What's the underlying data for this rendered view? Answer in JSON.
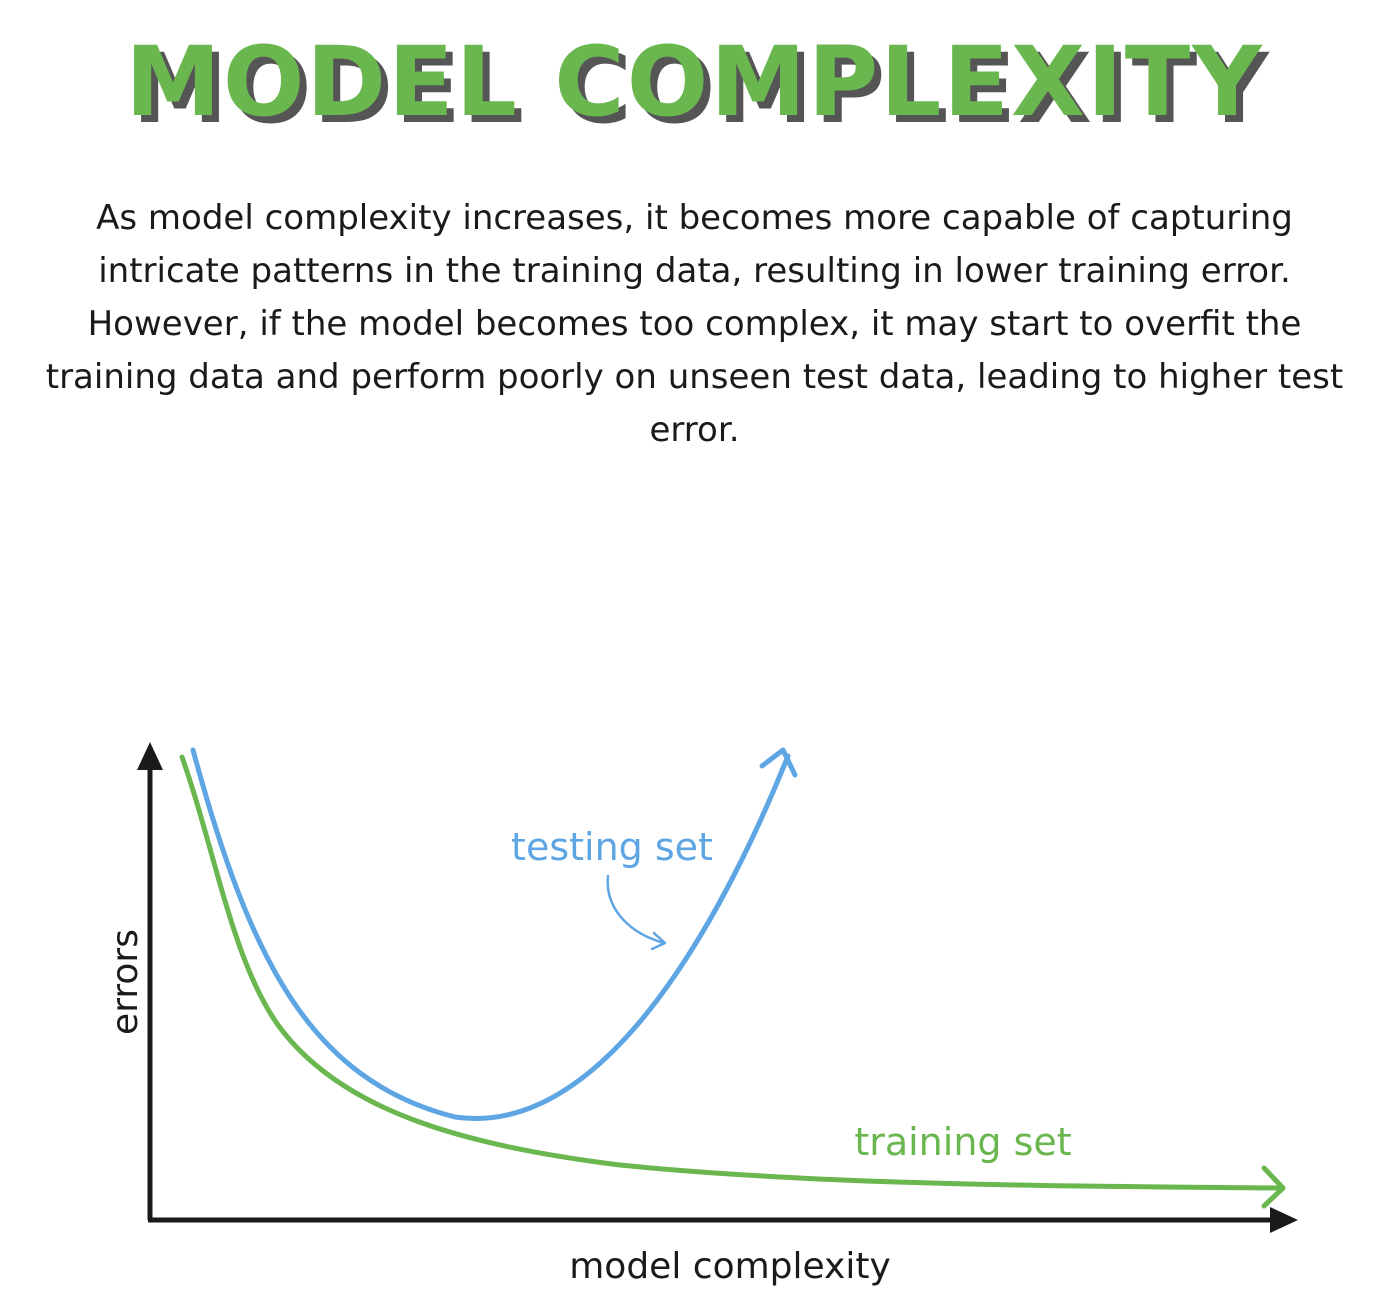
{
  "title": "MODEL COMPLEXITY",
  "description": "As model complexity increases, it becomes more capable of capturing intricate patterns in the training data, resulting in lower training error. However, if the model becomes too complex, it may start to overfit the training data and perform poorly on unseen test data, leading to higher test error.",
  "diagram": {
    "x_label": "model complexity",
    "y_label": "errors",
    "testing_label": "testing set",
    "training_label": "training set",
    "colors": {
      "training": "#6ab64f",
      "testing": "#5ea5e4",
      "axes": "#1a1a1a",
      "title_shadow": "#555555"
    }
  }
}
